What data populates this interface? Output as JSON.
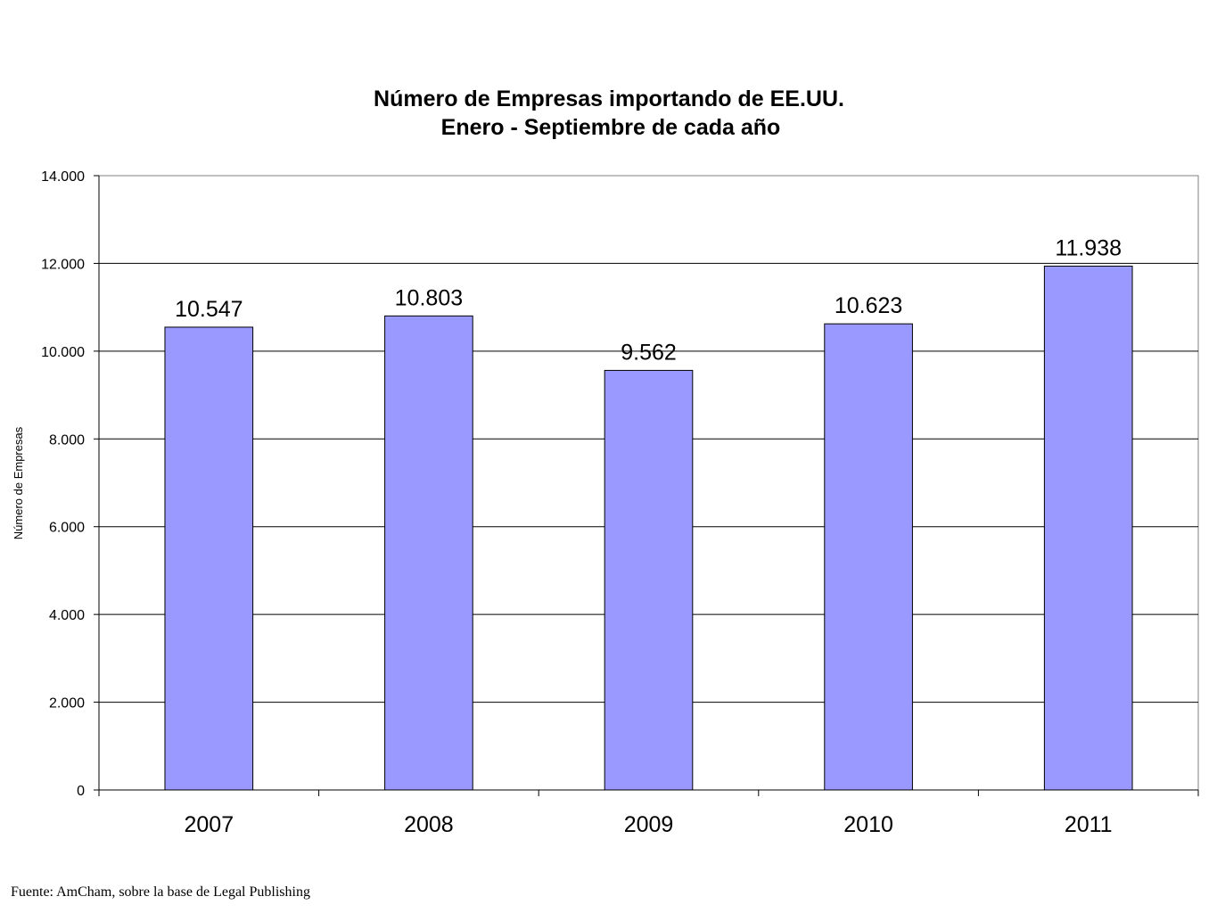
{
  "chart_data": {
    "type": "bar",
    "title": [
      "Número de Empresas importando de EE.UU.",
      "Enero - Septiembre de cada año"
    ],
    "ylabel": "Número de Empresas",
    "xlabel": "",
    "categories": [
      "2007",
      "2008",
      "2009",
      "2010",
      "2011"
    ],
    "values": [
      10547,
      10803,
      9562,
      10623,
      11938
    ],
    "value_labels": [
      "10.547",
      "10.803",
      "9.562",
      "10.623",
      "11.938"
    ],
    "ylim": [
      0,
      14000
    ],
    "yticks": [
      0,
      2000,
      4000,
      6000,
      8000,
      10000,
      12000,
      14000
    ],
    "ytick_labels": [
      "0",
      "2.000",
      "4.000",
      "6.000",
      "8.000",
      "10.000",
      "12.000",
      "14.000"
    ],
    "grid": true,
    "legend": "none",
    "bar_color": "#9999ff"
  },
  "source": "Fuente: AmCham, sobre la base de Legal Publishing"
}
